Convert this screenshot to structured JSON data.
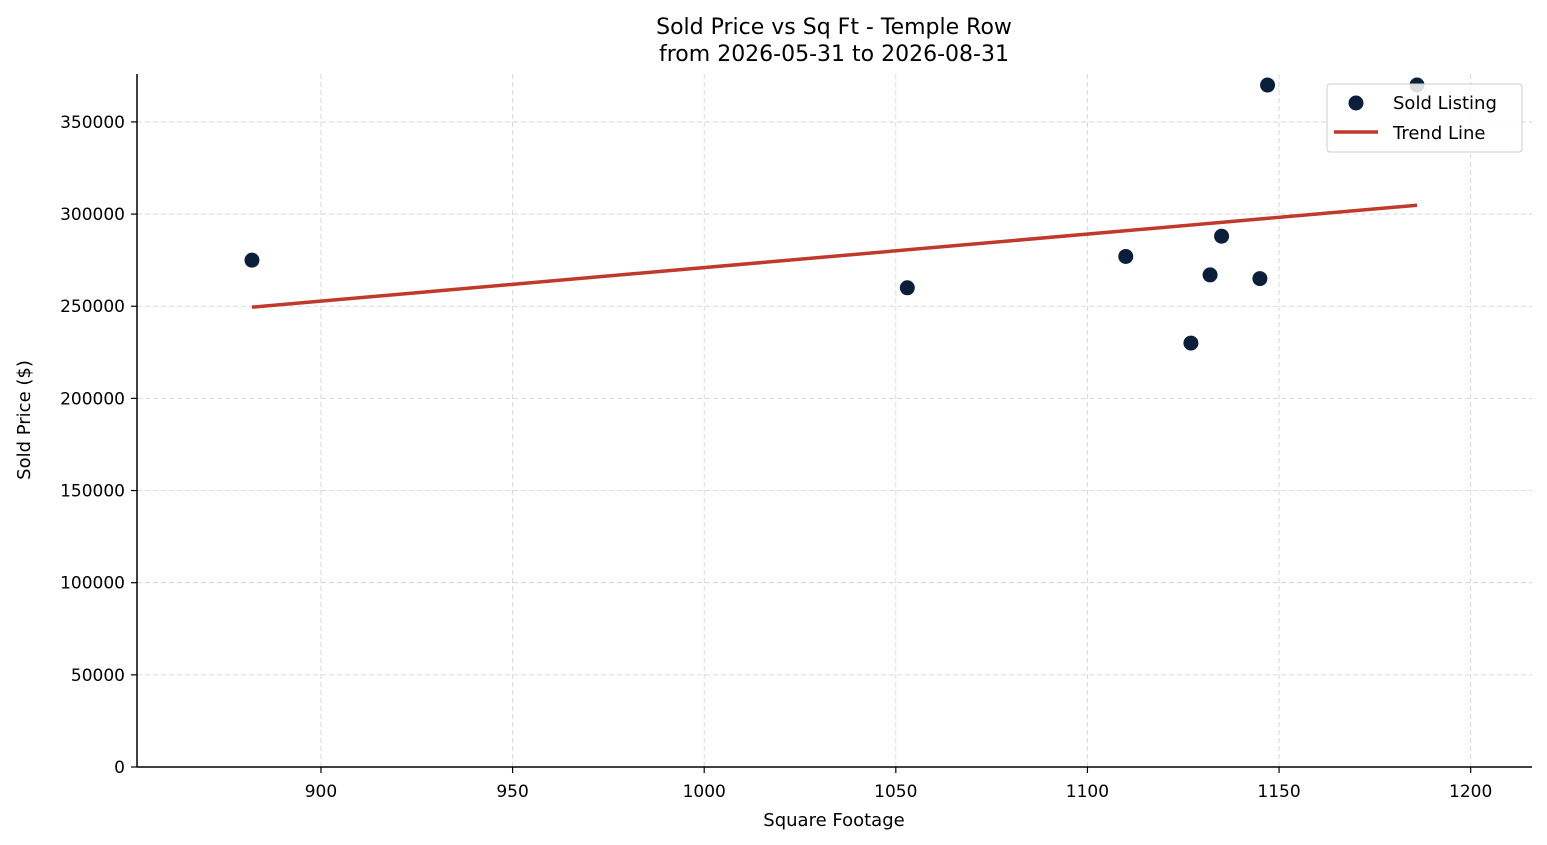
{
  "chart_data": {
    "type": "scatter",
    "title": "Sold Price vs Sq Ft - Temple Row",
    "subtitle": "from 2026-05-31 to 2026-08-31",
    "xlabel": "Square Footage",
    "ylabel": "Sold Price ($)",
    "xlim": [
      852,
      1216
    ],
    "ylim": [
      0,
      376000
    ],
    "xticks": [
      900,
      950,
      1000,
      1050,
      1100,
      1150,
      1200
    ],
    "yticks": [
      0,
      50000,
      100000,
      150000,
      200000,
      250000,
      300000,
      350000
    ],
    "grid": true,
    "legend_position": "top-right",
    "series": [
      {
        "name": "Sold Listing",
        "kind": "scatter",
        "color": "#0b1f3a",
        "points": [
          {
            "x": 882,
            "y": 275000
          },
          {
            "x": 1053,
            "y": 260000
          },
          {
            "x": 1110,
            "y": 277000
          },
          {
            "x": 1127,
            "y": 230000
          },
          {
            "x": 1132,
            "y": 267000
          },
          {
            "x": 1135,
            "y": 288000
          },
          {
            "x": 1145,
            "y": 265000
          },
          {
            "x": 1147,
            "y": 370000
          },
          {
            "x": 1186,
            "y": 370000
          }
        ]
      },
      {
        "name": "Trend Line",
        "kind": "line",
        "color": "#c0392b",
        "points": [
          {
            "x": 882,
            "y": 249500
          },
          {
            "x": 1186,
            "y": 304800
          }
        ]
      }
    ]
  }
}
